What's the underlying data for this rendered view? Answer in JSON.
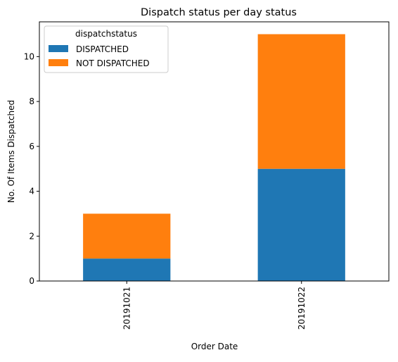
{
  "chart_data": {
    "type": "bar",
    "stacked": true,
    "title": "Dispatch status per day status",
    "xlabel": "Order Date",
    "ylabel": "No. Of Items Dispatched",
    "categories": [
      "20191021",
      "20191022"
    ],
    "series": [
      {
        "name": "DISPATCHED",
        "values": [
          1,
          5
        ],
        "color": "#1f77b4"
      },
      {
        "name": "NOT DISPATCHED",
        "values": [
          2,
          6
        ],
        "color": "#ff7f0e"
      }
    ],
    "ylim": [
      0,
      11.55
    ],
    "yticks": [
      0,
      2,
      4,
      6,
      8,
      10
    ],
    "legend": {
      "title": "dispatchstatus",
      "placement": "top-left"
    },
    "grid": false,
    "x_tick_rotation": "vertical"
  }
}
